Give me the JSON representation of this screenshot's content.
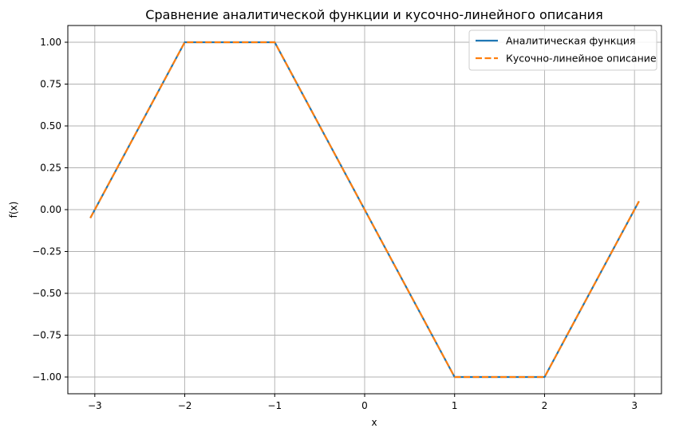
{
  "chart_data": {
    "type": "line",
    "title": "Сравнение аналитической функции и кусочно-линейного описания",
    "xlabel": "x",
    "ylabel": "f(x)",
    "xlim": [
      -3.3,
      3.3
    ],
    "ylim": [
      -1.1,
      1.1
    ],
    "grid": true,
    "legend_position": "top-right",
    "x_ticks": [
      -3,
      -2,
      -1,
      0,
      1,
      2,
      3
    ],
    "x_tick_labels": [
      "−3",
      "−2",
      "−1",
      "0",
      "1",
      "2",
      "3"
    ],
    "y_ticks": [
      1.0,
      0.75,
      0.5,
      0.25,
      0.0,
      -0.25,
      -0.5,
      -0.75,
      -1.0
    ],
    "y_tick_labels": [
      "1.00",
      "0.75",
      "0.50",
      "0.25",
      "0.00",
      "−0.25",
      "−0.50",
      "−0.75",
      "−1.00"
    ],
    "series": [
      {
        "name": "Аналитическая функция",
        "color": "#1f77b4",
        "style": "solid",
        "x": [
          -3.05,
          -2,
          -1,
          0,
          1,
          2,
          3.05
        ],
        "y": [
          -0.05,
          1.0,
          1.0,
          0.0,
          -1.0,
          -1.0,
          0.05
        ]
      },
      {
        "name": "Кусочно-линейное описание",
        "color": "#ff7f0e",
        "style": "dashed",
        "x": [
          -3.05,
          -2,
          -1,
          0,
          1,
          2,
          3.05
        ],
        "y": [
          -0.05,
          1.0,
          1.0,
          0.0,
          -1.0,
          -1.0,
          0.05
        ]
      }
    ]
  }
}
